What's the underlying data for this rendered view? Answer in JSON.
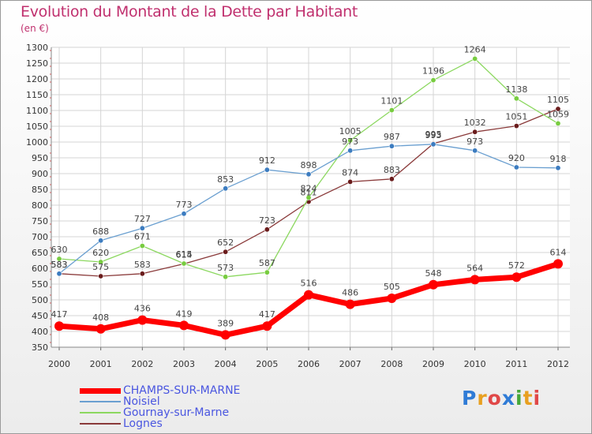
{
  "header": {
    "title": "Evolution du Montant de la Dette par Habitant",
    "subtitle": "(en €)"
  },
  "logo": {
    "text": "Proxiti",
    "letters": [
      "P",
      "r",
      "o",
      "x",
      "i",
      "t",
      "i"
    ],
    "colors": [
      "#2f7bd6",
      "#e8a020",
      "#e04848",
      "#2f7bd6",
      "#46a83a",
      "#e8a020",
      "#e04848"
    ]
  },
  "chart_data": {
    "type": "line",
    "title": "Evolution du Montant de la Dette par Habitant",
    "subtitle": "(en €)",
    "x": [
      "2000",
      "2001",
      "2002",
      "2003",
      "2004",
      "2005",
      "2006",
      "2007",
      "2008",
      "2009",
      "2010",
      "2011",
      "2012"
    ],
    "ylim": [
      350,
      1300
    ],
    "yticks": [
      350,
      400,
      450,
      500,
      550,
      600,
      650,
      700,
      750,
      800,
      850,
      900,
      950,
      1000,
      1050,
      1100,
      1150,
      1200,
      1250,
      1300
    ],
    "grid": true,
    "legend_position": "bottom-left",
    "series": [
      {
        "name": "CHAMPS-SUR-MARNE",
        "color": "#ff0000",
        "markerColor": "#ff0000",
        "lineWidth": 7,
        "values": [
          417,
          408,
          436,
          419,
          389,
          417,
          516,
          486,
          505,
          548,
          564,
          572,
          614
        ]
      },
      {
        "name": "Noisiel",
        "color": "#6a9fd0",
        "markerColor": "#3c7cc0",
        "lineWidth": 1.3,
        "values": [
          583,
          688,
          727,
          773,
          853,
          912,
          898,
          973,
          987,
          993,
          973,
          920,
          918
        ]
      },
      {
        "name": "Gournay-sur-Marne",
        "color": "#8cd860",
        "markerColor": "#78cc40",
        "lineWidth": 1.3,
        "values": [
          630,
          620,
          671,
          615,
          573,
          587,
          824,
          1005,
          1101,
          1196,
          1264,
          1138,
          1059
        ]
      },
      {
        "name": "Lognes",
        "color": "#8a3a3a",
        "markerColor": "#6a1c1c",
        "lineWidth": 1.3,
        "values": [
          583,
          575,
          583,
          614,
          652,
          723,
          811,
          874,
          883,
          995,
          1032,
          1051,
          1105
        ]
      }
    ]
  }
}
